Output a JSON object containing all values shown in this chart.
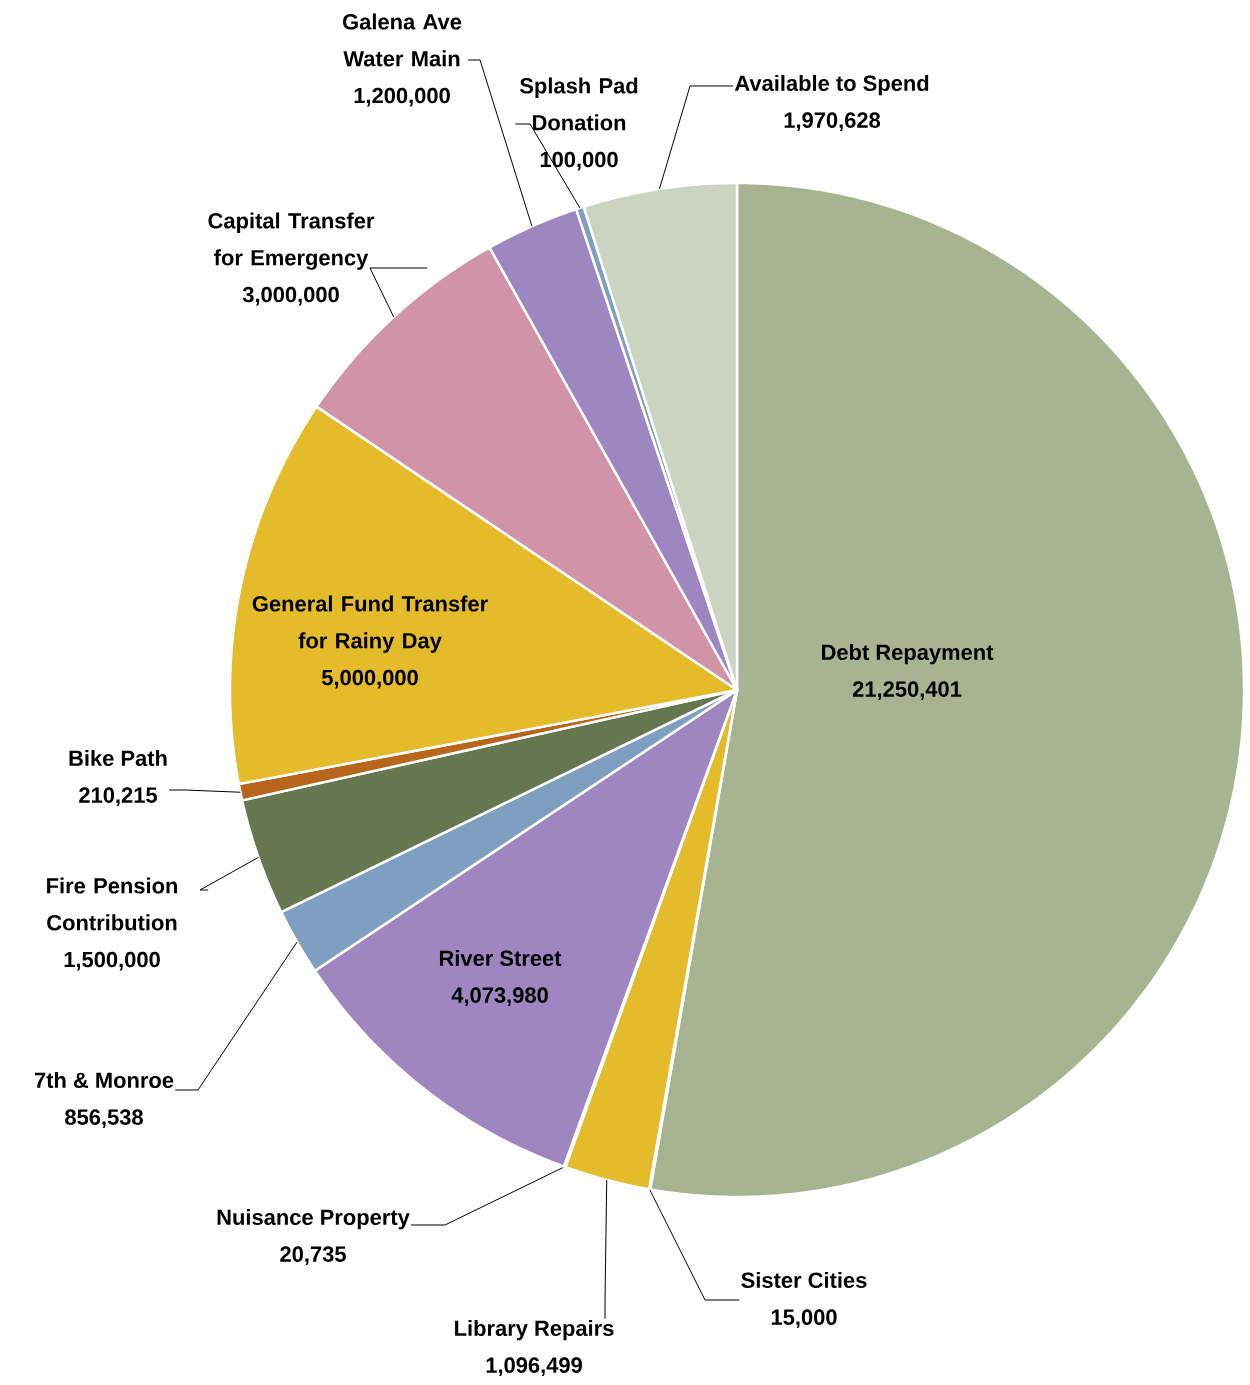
{
  "chart_data": {
    "type": "pie",
    "categories": [
      "Debt Repayment",
      "Sister Cities",
      "Library Repairs",
      "Nuisance Property",
      "River Street",
      "7th & Monroe",
      "Fire Pension Contribution",
      "Bike Path",
      "General Fund Transfer for Rainy Day",
      "Capital Transfer for Emergency",
      "Galena Ave Water Main",
      "Splash Pad Donation",
      "Available to Spend"
    ],
    "values": [
      21250401,
      15000,
      1096499,
      20735,
      4073980,
      856538,
      1500000,
      210215,
      5000000,
      3000000,
      1200000,
      100000,
      1970628
    ],
    "value_labels": [
      "21,250,401",
      "15,000",
      "1,096,499",
      "20,735",
      "4,073,980",
      "856,538",
      "1,500,000",
      "210,215",
      "5,000,000",
      "3,000,000",
      "1,200,000",
      "100,000",
      "1,970,628"
    ],
    "colors": [
      "#a6b491",
      "#66774f",
      "#e4bb2b",
      "#d093a7",
      "#9e86c1",
      "#7f9fc0",
      "#66774f",
      "#b8661b",
      "#e4bb2b",
      "#d093a7",
      "#9e86c1",
      "#7f9fc0",
      "#cad4c0"
    ]
  }
}
